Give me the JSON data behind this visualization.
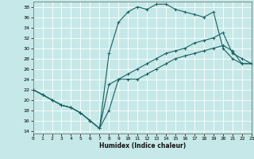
{
  "xlabel": "Humidex (Indice chaleur)",
  "bg_color": "#c6e8e8",
  "grid_color": "#b0d0d0",
  "line_color": "#1a6060",
  "xlim": [
    0,
    23
  ],
  "ylim": [
    13.5,
    39
  ],
  "xticks": [
    0,
    1,
    2,
    3,
    4,
    5,
    6,
    7,
    8,
    9,
    10,
    11,
    12,
    13,
    14,
    15,
    16,
    17,
    18,
    19,
    20,
    21,
    22,
    23
  ],
  "yticks": [
    14,
    16,
    18,
    20,
    22,
    24,
    26,
    28,
    30,
    32,
    34,
    36,
    38
  ],
  "line1_x": [
    0,
    1,
    2,
    3,
    4,
    5,
    6,
    7,
    8,
    9,
    10,
    11,
    12,
    13,
    14,
    15,
    16,
    17,
    18,
    19,
    20,
    21,
    22,
    23
  ],
  "line1_y": [
    22,
    21,
    20,
    19,
    18.5,
    17.5,
    16,
    14.5,
    23,
    24,
    25,
    26,
    27,
    28,
    29,
    29.5,
    30,
    31,
    31.5,
    32,
    33,
    29,
    28,
    27
  ],
  "line2_x": [
    0,
    1,
    2,
    3,
    4,
    5,
    6,
    7,
    8,
    9,
    10,
    11,
    12,
    13,
    14,
    15,
    16,
    17,
    18,
    19,
    20,
    21,
    22,
    23
  ],
  "line2_y": [
    22,
    21,
    20,
    19,
    18.5,
    17.5,
    16,
    14.5,
    29,
    35,
    37,
    38,
    37.5,
    38.5,
    38.5,
    37.5,
    37,
    36.5,
    36,
    37,
    30,
    28,
    27,
    27
  ],
  "line3_x": [
    0,
    1,
    2,
    3,
    4,
    5,
    6,
    7,
    8,
    9,
    10,
    11,
    12,
    13,
    14,
    15,
    16,
    17,
    18,
    19,
    20,
    21,
    22,
    23
  ],
  "line3_y": [
    22,
    21,
    20,
    19,
    18.5,
    17.5,
    16,
    14.5,
    18,
    24,
    24,
    24,
    25,
    26,
    27,
    28,
    28.5,
    29,
    29.5,
    30,
    30.5,
    29.5,
    27,
    27
  ]
}
